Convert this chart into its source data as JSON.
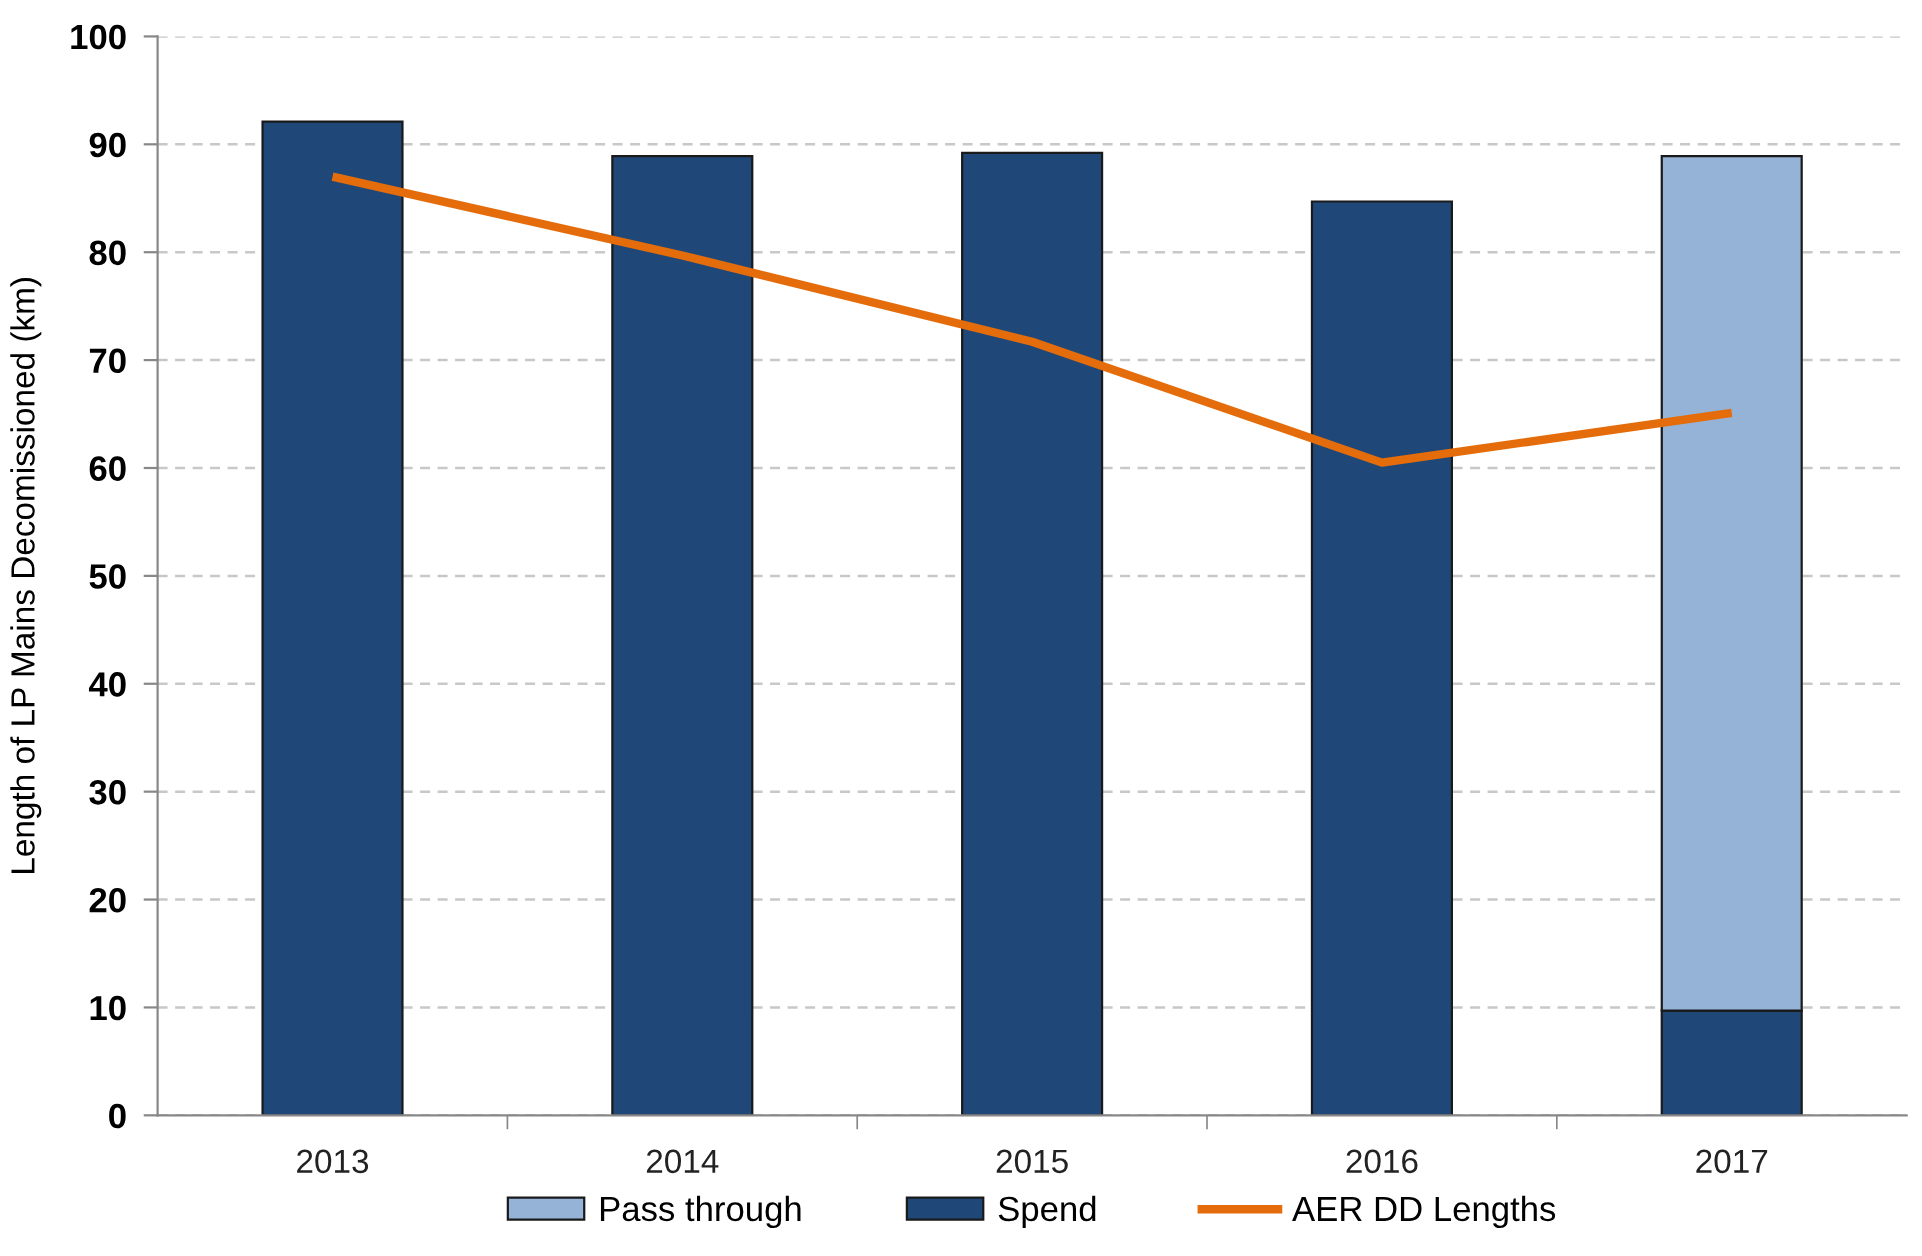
{
  "chart_data": {
    "type": "bar",
    "stacked": true,
    "ylabel": "Length of LP Mains Decomissioned (km)",
    "categories": [
      "2013",
      "2014",
      "2015",
      "2016",
      "2017"
    ],
    "series": [
      {
        "name": "Spend",
        "color": "#1f4878",
        "values": [
          92.1,
          88.9,
          89.2,
          84.7,
          9.7
        ]
      },
      {
        "name": "Pass through",
        "color": "#95b3d7",
        "values": [
          null,
          null,
          null,
          null,
          79.2
        ]
      },
      {
        "name": "AER DD Lengths",
        "type": "line",
        "color": "#e46c0a",
        "values": [
          87.0,
          79.7,
          71.7,
          60.5,
          65.1
        ]
      }
    ],
    "ylim": [
      0,
      100
    ],
    "yticks": [
      0,
      10,
      20,
      30,
      40,
      50,
      60,
      70,
      80,
      90,
      100
    ],
    "grid": "y",
    "legend": "bottom",
    "line_style": "solid"
  }
}
